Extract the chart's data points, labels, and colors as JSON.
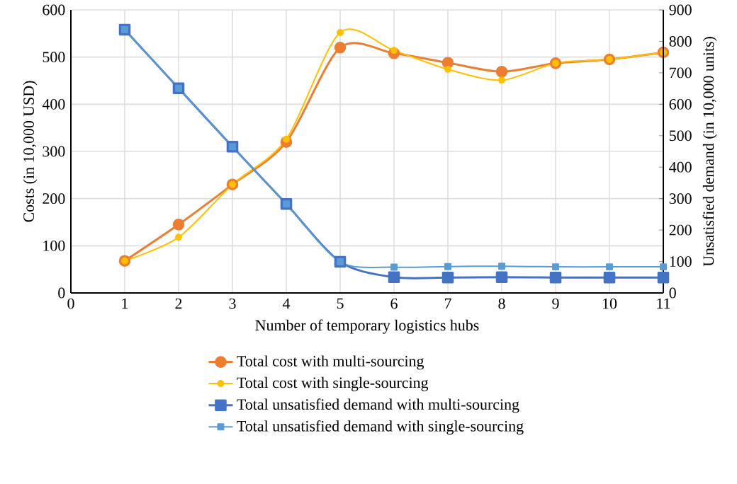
{
  "chart_data": {
    "type": "line",
    "xlabel": "Number of temporary logistics hubs",
    "ylabel": "Costs (in 10,000 USD)",
    "y2label": "Unsatisfied demand (in 10,000 units)",
    "x": [
      1,
      2,
      3,
      4,
      5,
      6,
      7,
      8,
      9,
      10,
      11
    ],
    "series": [
      {
        "name": "Total cost with multi-sourcing",
        "color": "#ed7d31",
        "marker": "circle",
        "values": [
          68,
          145,
          230,
          320,
          520,
          508,
          488,
          469,
          487,
          495,
          510
        ]
      },
      {
        "name": "Total cost with single-sourcing",
        "color": "#ffc000",
        "marker": "circle",
        "values": [
          68,
          118,
          230,
          326,
          552,
          514,
          474,
          451,
          487,
          495,
          510
        ]
      },
      {
        "name": "Total unsatisfied demand with multi-sourcing",
        "color": "#4472c4",
        "marker": "square",
        "axis": "y2",
        "values": [
          837,
          651,
          465,
          283,
          99,
          50,
          49,
          50,
          49,
          49,
          49
        ]
      },
      {
        "name": "Total unsatisfied demand with single-sourcing",
        "color": "#5b9bd5",
        "marker": "square",
        "axis": "y2",
        "values": [
          837,
          651,
          465,
          283,
          99,
          82,
          84,
          85,
          83,
          83,
          83
        ]
      }
    ],
    "xlim": [
      0,
      11
    ],
    "xticks": [
      0,
      1,
      2,
      3,
      4,
      5,
      6,
      7,
      8,
      9,
      10,
      11
    ],
    "ylim": [
      0,
      600
    ],
    "yticks": [
      0,
      100,
      200,
      300,
      400,
      500,
      600
    ],
    "y2lim": [
      0,
      900
    ],
    "y2ticks": [
      0,
      100,
      200,
      300,
      400,
      500,
      600,
      700,
      800,
      900
    ],
    "grid": true,
    "legend": "bottom"
  }
}
